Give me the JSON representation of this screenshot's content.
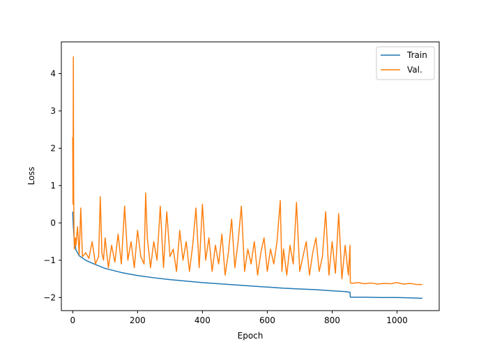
{
  "chart_data": {
    "type": "line",
    "title": "",
    "xlabel": "Epoch",
    "ylabel": "Loss",
    "xlim": [
      -35,
      1130
    ],
    "ylim": [
      -2.35,
      4.85
    ],
    "xticks": [
      0,
      200,
      400,
      600,
      800,
      1000
    ],
    "yticks": [
      -2,
      -1,
      0,
      1,
      2,
      3,
      4
    ],
    "legend": {
      "position": "top-right"
    },
    "grid": false,
    "series": [
      {
        "name": "Train",
        "color": "#1f77b4",
        "x": [
          0,
          2,
          5,
          10,
          20,
          40,
          60,
          80,
          100,
          150,
          200,
          250,
          300,
          350,
          400,
          450,
          500,
          550,
          600,
          650,
          700,
          750,
          800,
          840,
          855,
          856,
          860,
          900,
          950,
          1000,
          1050,
          1078
        ],
        "y": [
          0.3,
          -0.1,
          -0.5,
          -0.72,
          -0.88,
          -1.0,
          -1.08,
          -1.15,
          -1.22,
          -1.33,
          -1.41,
          -1.47,
          -1.52,
          -1.56,
          -1.6,
          -1.63,
          -1.66,
          -1.69,
          -1.72,
          -1.75,
          -1.77,
          -1.79,
          -1.82,
          -1.84,
          -1.86,
          -1.99,
          -1.99,
          -1.99,
          -2.0,
          -2.0,
          -2.01,
          -2.02
        ]
      },
      {
        "name": "Val.",
        "color": "#ff7f0e",
        "x": [
          0,
          1,
          2,
          3,
          4,
          5,
          8,
          10,
          15,
          20,
          25,
          30,
          40,
          50,
          60,
          70,
          80,
          85,
          90,
          95,
          100,
          110,
          120,
          130,
          140,
          150,
          160,
          170,
          180,
          190,
          200,
          210,
          220,
          225,
          230,
          240,
          250,
          260,
          270,
          280,
          290,
          300,
          310,
          320,
          330,
          340,
          350,
          360,
          370,
          380,
          390,
          400,
          410,
          420,
          430,
          440,
          450,
          460,
          470,
          480,
          490,
          500,
          510,
          520,
          530,
          540,
          550,
          560,
          570,
          580,
          590,
          600,
          610,
          620,
          630,
          640,
          645,
          650,
          660,
          670,
          680,
          690,
          700,
          710,
          720,
          730,
          740,
          750,
          760,
          770,
          780,
          790,
          800,
          810,
          820,
          830,
          840,
          850,
          855,
          856,
          860,
          880,
          900,
          920,
          940,
          960,
          980,
          1000,
          1020,
          1040,
          1060,
          1078
        ],
        "y": [
          2.3,
          0.5,
          4.45,
          0.8,
          -0.2,
          -0.7,
          -0.4,
          -0.6,
          -0.1,
          -0.85,
          0.4,
          -0.9,
          -0.8,
          -0.95,
          -0.5,
          -1.1,
          -0.9,
          0.7,
          -0.8,
          -1.0,
          -0.4,
          -1.2,
          -0.6,
          -1.05,
          -0.3,
          -1.1,
          0.45,
          -1.0,
          -0.5,
          -1.2,
          -0.2,
          -0.9,
          -1.1,
          0.8,
          -0.4,
          -1.2,
          -0.5,
          -1.0,
          0.45,
          -1.2,
          0.3,
          -0.9,
          -0.7,
          -1.3,
          -0.2,
          -1.0,
          -0.5,
          -1.3,
          -0.6,
          0.4,
          -1.2,
          0.5,
          -1.0,
          -0.4,
          -1.3,
          -0.6,
          -1.1,
          -0.3,
          -1.4,
          -0.8,
          0.1,
          -1.2,
          -0.5,
          0.45,
          -1.3,
          -0.7,
          -1.1,
          -0.5,
          -1.4,
          -0.8,
          -0.4,
          -1.3,
          -0.7,
          -1.1,
          -0.5,
          0.6,
          -1.3,
          -0.7,
          -1.4,
          -0.6,
          -1.1,
          0.55,
          -1.3,
          -0.9,
          -0.5,
          -1.4,
          -0.8,
          -0.4,
          -1.3,
          -0.9,
          0.3,
          -1.4,
          -0.5,
          -1.35,
          0.25,
          -1.5,
          -0.6,
          -1.4,
          -0.6,
          -1.6,
          -1.62,
          -1.6,
          -1.63,
          -1.61,
          -1.64,
          -1.62,
          -1.63,
          -1.6,
          -1.64,
          -1.62,
          -1.65,
          -1.65
        ]
      }
    ]
  }
}
